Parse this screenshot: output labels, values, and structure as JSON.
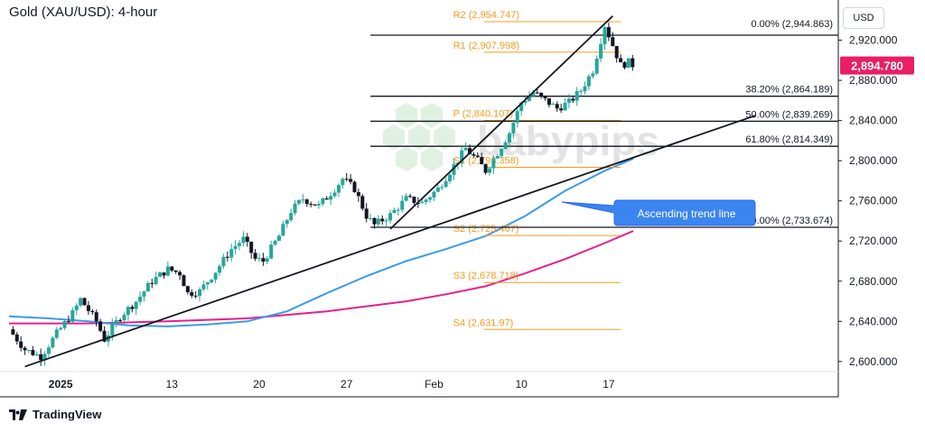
{
  "header": {
    "title": "Gold (XAU/USD): 4-hour",
    "currency": "USD"
  },
  "footer": {
    "brand": "TradingView"
  },
  "watermark": "babypips",
  "colors": {
    "candle_up": "#26a69a",
    "candle_down": "#131722",
    "ma_fast": "#3d9ae8",
    "ma_slow": "#e91e8c",
    "pivot": "#f59b23",
    "price_tag": "#e91e63"
  },
  "chart_data": {
    "type": "candlestick",
    "title": "Gold (XAU/USD): 4-hour",
    "ylim": [
      2590,
      2960
    ],
    "y_ticks": [
      "2,920.000",
      "2,880.000",
      "2,840.000",
      "2,800.000",
      "2,760.000",
      "2,720.000",
      "2,680.000",
      "2,640.000",
      "2,600.000"
    ],
    "x_ticks": [
      "2025",
      "13",
      "20",
      "27",
      "Feb",
      "10",
      "17"
    ],
    "current_price": "2,894.780",
    "close_path": [
      {
        "t": 0,
        "v": 2632
      },
      {
        "t": 2,
        "v": 2612
      },
      {
        "t": 4,
        "v": 2605
      },
      {
        "t": 6,
        "v": 2628
      },
      {
        "t": 8,
        "v": 2648
      },
      {
        "t": 9,
        "v": 2662
      },
      {
        "t": 11,
        "v": 2640
      },
      {
        "t": 12,
        "v": 2622
      },
      {
        "t": 14,
        "v": 2645
      },
      {
        "t": 16,
        "v": 2660
      },
      {
        "t": 18,
        "v": 2680
      },
      {
        "t": 20,
        "v": 2692
      },
      {
        "t": 21.5,
        "v": 2688
      },
      {
        "t": 22.5,
        "v": 2668
      },
      {
        "t": 24,
        "v": 2670
      },
      {
        "t": 26,
        "v": 2690
      },
      {
        "t": 28,
        "v": 2712
      },
      {
        "t": 29.5,
        "v": 2722
      },
      {
        "t": 31,
        "v": 2702
      },
      {
        "t": 32,
        "v": 2700
      },
      {
        "t": 34,
        "v": 2725
      },
      {
        "t": 35.5,
        "v": 2750
      },
      {
        "t": 37,
        "v": 2762
      },
      {
        "t": 39,
        "v": 2755
      },
      {
        "t": 41,
        "v": 2772
      },
      {
        "t": 42,
        "v": 2782
      },
      {
        "t": 43.5,
        "v": 2772
      },
      {
        "t": 45,
        "v": 2745
      },
      {
        "t": 46,
        "v": 2736
      },
      {
        "t": 48,
        "v": 2746
      },
      {
        "t": 50,
        "v": 2762
      },
      {
        "t": 52,
        "v": 2758
      },
      {
        "t": 54,
        "v": 2772
      },
      {
        "t": 56,
        "v": 2795
      },
      {
        "t": 57.5,
        "v": 2812
      },
      {
        "t": 59,
        "v": 2800
      },
      {
        "t": 60,
        "v": 2790
      },
      {
        "t": 61.5,
        "v": 2808
      },
      {
        "t": 63,
        "v": 2828
      },
      {
        "t": 64.5,
        "v": 2858
      },
      {
        "t": 66,
        "v": 2868
      },
      {
        "t": 67.5,
        "v": 2860
      },
      {
        "t": 69,
        "v": 2852
      },
      {
        "t": 70.5,
        "v": 2858
      },
      {
        "t": 72,
        "v": 2870
      },
      {
        "t": 73.5,
        "v": 2890
      },
      {
        "t": 75,
        "v": 2935
      },
      {
        "t": 76,
        "v": 2915
      },
      {
        "t": 77,
        "v": 2895
      },
      {
        "t": 78,
        "v": 2898
      },
      {
        "t": 78.6,
        "v": 2894.78
      }
    ],
    "ma_fast": [
      {
        "t": 0,
        "v": 2645
      },
      {
        "t": 5,
        "v": 2643
      },
      {
        "t": 10,
        "v": 2640
      },
      {
        "t": 15,
        "v": 2636
      },
      {
        "t": 20,
        "v": 2635
      },
      {
        "t": 25,
        "v": 2637
      },
      {
        "t": 30,
        "v": 2640
      },
      {
        "t": 35,
        "v": 2650
      },
      {
        "t": 40,
        "v": 2668
      },
      {
        "t": 45,
        "v": 2685
      },
      {
        "t": 50,
        "v": 2700
      },
      {
        "t": 55,
        "v": 2712
      },
      {
        "t": 60,
        "v": 2725
      },
      {
        "t": 65,
        "v": 2745
      },
      {
        "t": 70,
        "v": 2770
      },
      {
        "t": 75,
        "v": 2790
      },
      {
        "t": 78.6,
        "v": 2802
      }
    ],
    "ma_slow": [
      {
        "t": 0,
        "v": 2638
      },
      {
        "t": 10,
        "v": 2638
      },
      {
        "t": 20,
        "v": 2640
      },
      {
        "t": 30,
        "v": 2643
      },
      {
        "t": 40,
        "v": 2650
      },
      {
        "t": 50,
        "v": 2660
      },
      {
        "t": 55,
        "v": 2667
      },
      {
        "t": 60,
        "v": 2675
      },
      {
        "t": 65,
        "v": 2688
      },
      {
        "t": 70,
        "v": 2702
      },
      {
        "t": 75,
        "v": 2718
      },
      {
        "t": 78.6,
        "v": 2730
      }
    ],
    "trend_lines": [
      {
        "name": "ascending",
        "points": [
          {
            "t": 2,
            "v": 2595
          },
          {
            "t": 94,
            "v": 2845
          }
        ]
      },
      {
        "name": "upper",
        "points": [
          {
            "t": 48,
            "v": 2732
          },
          {
            "t": 76,
            "v": 2944
          }
        ]
      }
    ],
    "pivot_levels": [
      {
        "label": "R2 (2,954.747)",
        "value": 2954.747
      },
      {
        "label": "R1 (2,907.998)",
        "value": 2907.998
      },
      {
        "label": "P (2,840.107)",
        "value": 2840.107
      },
      {
        "label": "S1 (2,793.358)",
        "value": 2793.358
      },
      {
        "label": "S2 (2,725.467)",
        "value": 2725.467
      },
      {
        "label": "S3 (2,678.718)",
        "value": 2678.718
      },
      {
        "label": "S4 (2,631.97)",
        "value": 2631.97
      }
    ],
    "fib_levels": [
      {
        "label": "0.00% (2,944.863)",
        "value": 2944.863
      },
      {
        "label": "38.20% (2,864.189)",
        "value": 2864.189
      },
      {
        "label": "50.00% (2,839.269)",
        "value": 2839.269
      },
      {
        "label": "61.80% (2,814.349)",
        "value": 2814.349
      },
      {
        "label": "100.00% (2,733.674)",
        "value": 2733.674
      }
    ],
    "annotation": {
      "text": "Ascending trend line"
    }
  }
}
